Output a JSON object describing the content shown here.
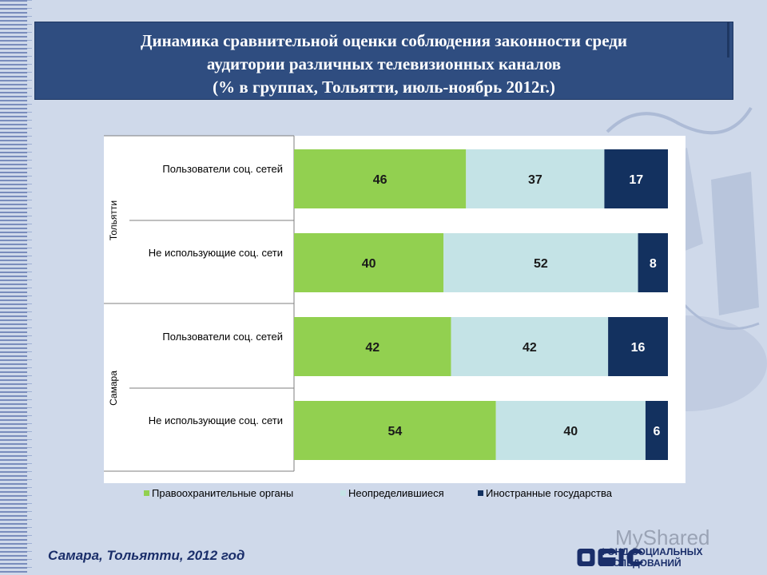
{
  "title_lines": [
    "Динамика сравнительной оценки соблюдения законности среди",
    "аудитории различных телевизионных каналов",
    "(% в группах, Тольятти, июль-ноябрь 2012г.)"
  ],
  "footer": "Самара, Тольятти, 2012 год",
  "watermark": "MyShared",
  "fund_name": [
    "ФОНД СОЦИАЛЬНЫХ",
    "ИССЛЕДОВАНИЙ"
  ],
  "colors": {
    "green": "#92d050",
    "lightblue": "#c4e3e6",
    "navy": "#13315f"
  },
  "chart_data": {
    "type": "bar",
    "orientation": "horizontal",
    "stacked": "100%",
    "groups": [
      {
        "name": "Тольятти",
        "categories": [
          "Пользователи соц. сетей",
          "Не использующие соц. сети"
        ]
      },
      {
        "name": "Самара",
        "categories": [
          "Пользователи соц. сетей",
          "Не использующие соц. сети"
        ]
      }
    ],
    "series": [
      {
        "name": "Правоохранительные органы",
        "color": "#92d050",
        "values": [
          46,
          40,
          42,
          54
        ]
      },
      {
        "name": "Неопределившиеся",
        "color": "#c4e3e6",
        "values": [
          37,
          52,
          42,
          40
        ]
      },
      {
        "name": "Иностранные государства",
        "color": "#13315f",
        "values": [
          17,
          8,
          16,
          6
        ]
      }
    ],
    "xlim": [
      0,
      100
    ],
    "legend_position": "bottom",
    "grid": false
  }
}
